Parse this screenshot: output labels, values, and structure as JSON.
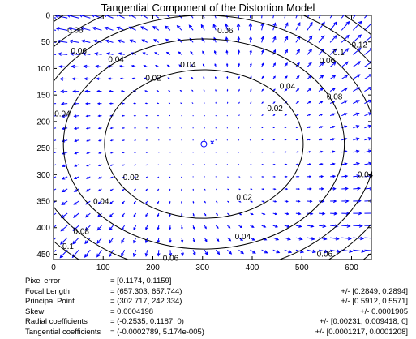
{
  "title": "Tangential Component of the Distortion Model",
  "chart_data": {
    "type": "contour",
    "title": "Tangential Component of the Distortion Model",
    "xlim": [
      0,
      640
    ],
    "ylim": [
      0,
      460
    ],
    "y_axis_inverted": true,
    "x_ticks": [
      0,
      100,
      200,
      300,
      400,
      500,
      600
    ],
    "y_ticks": [
      0,
      50,
      100,
      150,
      200,
      250,
      300,
      350,
      400,
      450
    ],
    "contour_levels": [
      0.02,
      0.04,
      0.06,
      0.08,
      0.1,
      0.12
    ],
    "contour_labels": [
      {
        "text": "0.08",
        "x": 28,
        "y": 33
      },
      {
        "text": "0.06",
        "x": 35,
        "y": 72
      },
      {
        "text": "0.04",
        "x": 110,
        "y": 88
      },
      {
        "text": "0.06",
        "x": 330,
        "y": 34
      },
      {
        "text": "0.04",
        "x": 255,
        "y": 98
      },
      {
        "text": "0.02",
        "x": 185,
        "y": 123
      },
      {
        "text": "0.04",
        "x": 455,
        "y": 138
      },
      {
        "text": "0.02",
        "x": 430,
        "y": 180
      },
      {
        "text": "0.06",
        "x": 535,
        "y": 90
      },
      {
        "text": "0.1",
        "x": 563,
        "y": 75
      },
      {
        "text": "0.12",
        "x": 600,
        "y": 60
      },
      {
        "text": "0.08",
        "x": 550,
        "y": 158
      },
      {
        "text": "0.04",
        "x": 2,
        "y": 190
      },
      {
        "text": "0.02",
        "x": 140,
        "y": 310
      },
      {
        "text": "0.04",
        "x": 80,
        "y": 355
      },
      {
        "text": "0.02",
        "x": 368,
        "y": 348
      },
      {
        "text": "0.04",
        "x": 612,
        "y": 305
      },
      {
        "text": "0.08",
        "x": 40,
        "y": 412
      },
      {
        "text": "0.1",
        "x": 18,
        "y": 440
      },
      {
        "text": "0.04",
        "x": 365,
        "y": 422
      },
      {
        "text": "0.06",
        "x": 220,
        "y": 462
      },
      {
        "text": "0.06",
        "x": 530,
        "y": 455
      }
    ],
    "principal_point": [
      302.717,
      242.334
    ],
    "image_center": [
      319.5,
      239.5
    ],
    "grid": false
  },
  "info": [
    {
      "label": "Pixel error",
      "value": "= [0.1174, 0.1159]",
      "uncertainty": ""
    },
    {
      "label": "Focal Length",
      "value": "= (657.303, 657.744)",
      "uncertainty": "+/- [0.2849, 0.2894]"
    },
    {
      "label": "Principal Point",
      "value": "= (302.717, 242.334)",
      "uncertainty": "+/- [0.5912, 0.5571]"
    },
    {
      "label": "Skew",
      "value": "= 0.0004198",
      "uncertainty": "+/- 0.0001905"
    },
    {
      "label": "Radial coefficients",
      "value": "= (-0.2535, 0.1187, 0)",
      "uncertainty": "+/- [0.00231, 0.009418, 0]"
    },
    {
      "label": "Tangential coefficients",
      "value": "= (-0.0002789, 5.174e-005)",
      "uncertainty": "+/- [0.0001217, 0.0001208]"
    }
  ],
  "colors": {
    "arrows": "#0000ff",
    "contours": "#000000",
    "marker": "#0000ff"
  }
}
